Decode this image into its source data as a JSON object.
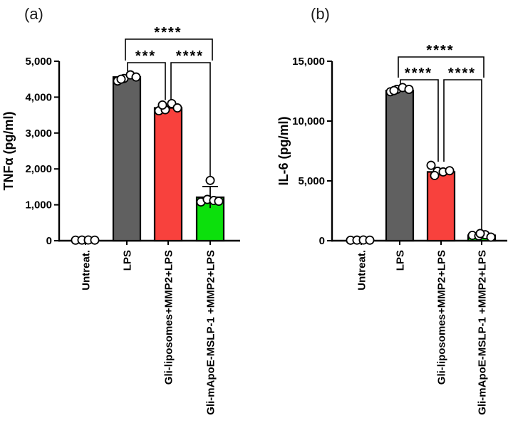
{
  "figure": {
    "background": "#ffffff",
    "marker_style": "open-circle",
    "marker_fill": "#ffffff",
    "line_color": "#000000"
  },
  "chart_data": [
    {
      "type": "bar",
      "panel_label": "(a)",
      "ylabel": "TNFα (pg/ml)",
      "xlabel": "",
      "ylim": [
        0,
        5000
      ],
      "yticks": [
        0,
        1000,
        2000,
        3000,
        4000,
        5000
      ],
      "ytick_labels": [
        "0",
        "1,000",
        "2,000",
        "3,000",
        "4,000",
        "5,000"
      ],
      "categories": [
        "Untreat.",
        "LPS",
        "Gli-liposomes+MMP2+LPS",
        "Gli-mApoE-MSLP-1 +MMP2+LPS"
      ],
      "bar_means": [
        0,
        4560,
        3700,
        1210
      ],
      "bar_colors": [
        null,
        "#606060",
        "#f8413d",
        "#0ce00c"
      ],
      "error_sd": [
        null,
        null,
        null,
        300
      ],
      "points": [
        [
          15,
          18,
          20,
          16
        ],
        [
          4450,
          4520,
          4620,
          4560,
          4500
        ],
        [
          3620,
          3650,
          3820,
          3700,
          3780
        ],
        [
          1080,
          1150,
          1120,
          1100,
          1680
        ]
      ],
      "point_jitter": [
        [
          -14,
          -5,
          4,
          13
        ],
        [
          -13,
          -4,
          5,
          13,
          -8
        ],
        [
          -13,
          -4,
          5,
          13,
          -8
        ],
        [
          -13,
          -4,
          5,
          12,
          0
        ]
      ],
      "significance": [
        {
          "from": 1,
          "to": 3,
          "label": "****",
          "level": "top"
        },
        {
          "from": 1,
          "to": 2,
          "label": "***",
          "level": "low"
        },
        {
          "from": 2,
          "to": 3,
          "label": "****",
          "level": "low"
        }
      ],
      "grid": false,
      "legend": null
    },
    {
      "type": "bar",
      "panel_label": "(b)",
      "ylabel": "IL-6 (pg/ml)",
      "xlabel": "",
      "ylim": [
        0,
        15000
      ],
      "yticks": [
        0,
        5000,
        10000,
        15000
      ],
      "ytick_labels": [
        "0",
        "5,000",
        "10,000",
        "15,000"
      ],
      "categories": [
        "Untreat.",
        "LPS",
        "Gli-liposomes+MMP2+LPS",
        "Gli-mApoE-MSLP-1 +MMP2+LPS"
      ],
      "bar_means": [
        0,
        12550,
        5750,
        450
      ],
      "bar_colors": [
        null,
        "#606060",
        "#f8413d",
        "#0ce00c"
      ],
      "error_sd": [
        null,
        null,
        null,
        null
      ],
      "points": [
        [
          40,
          50,
          60,
          45
        ],
        [
          12450,
          12650,
          12800,
          12650,
          12550
        ],
        [
          6300,
          5800,
          5750,
          5850,
          5450
        ],
        [
          450,
          400,
          500,
          300,
          600
        ]
      ],
      "point_jitter": [
        [
          -15,
          -6,
          3,
          12
        ],
        [
          -13,
          -4,
          4,
          13,
          -8
        ],
        [
          -14,
          -5,
          3,
          12,
          -9
        ],
        [
          -13,
          -4,
          5,
          13,
          -2
        ]
      ],
      "significance": [
        {
          "from": 1,
          "to": 3,
          "label": "****",
          "level": "top"
        },
        {
          "from": 1,
          "to": 2,
          "label": "****",
          "level": "low"
        },
        {
          "from": 2,
          "to": 3,
          "label": "****",
          "level": "low"
        }
      ],
      "grid": false,
      "legend": null
    }
  ]
}
